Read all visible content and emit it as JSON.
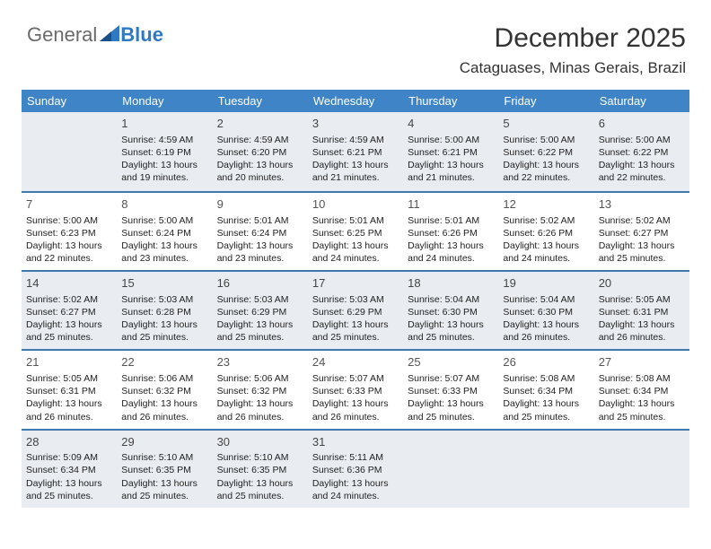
{
  "brand": {
    "part1": "General",
    "part2": "Blue"
  },
  "title": "December 2025",
  "location": "Cataguases, Minas Gerais, Brazil",
  "colors": {
    "header_bg": "#3e84c6",
    "divider": "#3e78b0",
    "shade_bg": "#e9edf1",
    "logo_gray": "#6a6a6a",
    "logo_blue": "#2f78c3"
  },
  "weekdays": [
    "Sunday",
    "Monday",
    "Tuesday",
    "Wednesday",
    "Thursday",
    "Friday",
    "Saturday"
  ],
  "weeks": [
    [
      {
        "n": "",
        "sr": "",
        "ss": "",
        "dl": ""
      },
      {
        "n": "1",
        "sr": "Sunrise: 4:59 AM",
        "ss": "Sunset: 6:19 PM",
        "dl": "Daylight: 13 hours and 19 minutes."
      },
      {
        "n": "2",
        "sr": "Sunrise: 4:59 AM",
        "ss": "Sunset: 6:20 PM",
        "dl": "Daylight: 13 hours and 20 minutes."
      },
      {
        "n": "3",
        "sr": "Sunrise: 4:59 AM",
        "ss": "Sunset: 6:21 PM",
        "dl": "Daylight: 13 hours and 21 minutes."
      },
      {
        "n": "4",
        "sr": "Sunrise: 5:00 AM",
        "ss": "Sunset: 6:21 PM",
        "dl": "Daylight: 13 hours and 21 minutes."
      },
      {
        "n": "5",
        "sr": "Sunrise: 5:00 AM",
        "ss": "Sunset: 6:22 PM",
        "dl": "Daylight: 13 hours and 22 minutes."
      },
      {
        "n": "6",
        "sr": "Sunrise: 5:00 AM",
        "ss": "Sunset: 6:22 PM",
        "dl": "Daylight: 13 hours and 22 minutes."
      }
    ],
    [
      {
        "n": "7",
        "sr": "Sunrise: 5:00 AM",
        "ss": "Sunset: 6:23 PM",
        "dl": "Daylight: 13 hours and 22 minutes."
      },
      {
        "n": "8",
        "sr": "Sunrise: 5:00 AM",
        "ss": "Sunset: 6:24 PM",
        "dl": "Daylight: 13 hours and 23 minutes."
      },
      {
        "n": "9",
        "sr": "Sunrise: 5:01 AM",
        "ss": "Sunset: 6:24 PM",
        "dl": "Daylight: 13 hours and 23 minutes."
      },
      {
        "n": "10",
        "sr": "Sunrise: 5:01 AM",
        "ss": "Sunset: 6:25 PM",
        "dl": "Daylight: 13 hours and 24 minutes."
      },
      {
        "n": "11",
        "sr": "Sunrise: 5:01 AM",
        "ss": "Sunset: 6:26 PM",
        "dl": "Daylight: 13 hours and 24 minutes."
      },
      {
        "n": "12",
        "sr": "Sunrise: 5:02 AM",
        "ss": "Sunset: 6:26 PM",
        "dl": "Daylight: 13 hours and 24 minutes."
      },
      {
        "n": "13",
        "sr": "Sunrise: 5:02 AM",
        "ss": "Sunset: 6:27 PM",
        "dl": "Daylight: 13 hours and 25 minutes."
      }
    ],
    [
      {
        "n": "14",
        "sr": "Sunrise: 5:02 AM",
        "ss": "Sunset: 6:27 PM",
        "dl": "Daylight: 13 hours and 25 minutes."
      },
      {
        "n": "15",
        "sr": "Sunrise: 5:03 AM",
        "ss": "Sunset: 6:28 PM",
        "dl": "Daylight: 13 hours and 25 minutes."
      },
      {
        "n": "16",
        "sr": "Sunrise: 5:03 AM",
        "ss": "Sunset: 6:29 PM",
        "dl": "Daylight: 13 hours and 25 minutes."
      },
      {
        "n": "17",
        "sr": "Sunrise: 5:03 AM",
        "ss": "Sunset: 6:29 PM",
        "dl": "Daylight: 13 hours and 25 minutes."
      },
      {
        "n": "18",
        "sr": "Sunrise: 5:04 AM",
        "ss": "Sunset: 6:30 PM",
        "dl": "Daylight: 13 hours and 25 minutes."
      },
      {
        "n": "19",
        "sr": "Sunrise: 5:04 AM",
        "ss": "Sunset: 6:30 PM",
        "dl": "Daylight: 13 hours and 26 minutes."
      },
      {
        "n": "20",
        "sr": "Sunrise: 5:05 AM",
        "ss": "Sunset: 6:31 PM",
        "dl": "Daylight: 13 hours and 26 minutes."
      }
    ],
    [
      {
        "n": "21",
        "sr": "Sunrise: 5:05 AM",
        "ss": "Sunset: 6:31 PM",
        "dl": "Daylight: 13 hours and 26 minutes."
      },
      {
        "n": "22",
        "sr": "Sunrise: 5:06 AM",
        "ss": "Sunset: 6:32 PM",
        "dl": "Daylight: 13 hours and 26 minutes."
      },
      {
        "n": "23",
        "sr": "Sunrise: 5:06 AM",
        "ss": "Sunset: 6:32 PM",
        "dl": "Daylight: 13 hours and 26 minutes."
      },
      {
        "n": "24",
        "sr": "Sunrise: 5:07 AM",
        "ss": "Sunset: 6:33 PM",
        "dl": "Daylight: 13 hours and 26 minutes."
      },
      {
        "n": "25",
        "sr": "Sunrise: 5:07 AM",
        "ss": "Sunset: 6:33 PM",
        "dl": "Daylight: 13 hours and 25 minutes."
      },
      {
        "n": "26",
        "sr": "Sunrise: 5:08 AM",
        "ss": "Sunset: 6:34 PM",
        "dl": "Daylight: 13 hours and 25 minutes."
      },
      {
        "n": "27",
        "sr": "Sunrise: 5:08 AM",
        "ss": "Sunset: 6:34 PM",
        "dl": "Daylight: 13 hours and 25 minutes."
      }
    ],
    [
      {
        "n": "28",
        "sr": "Sunrise: 5:09 AM",
        "ss": "Sunset: 6:34 PM",
        "dl": "Daylight: 13 hours and 25 minutes."
      },
      {
        "n": "29",
        "sr": "Sunrise: 5:10 AM",
        "ss": "Sunset: 6:35 PM",
        "dl": "Daylight: 13 hours and 25 minutes."
      },
      {
        "n": "30",
        "sr": "Sunrise: 5:10 AM",
        "ss": "Sunset: 6:35 PM",
        "dl": "Daylight: 13 hours and 25 minutes."
      },
      {
        "n": "31",
        "sr": "Sunrise: 5:11 AM",
        "ss": "Sunset: 6:36 PM",
        "dl": "Daylight: 13 hours and 24 minutes."
      },
      {
        "n": "",
        "sr": "",
        "ss": "",
        "dl": ""
      },
      {
        "n": "",
        "sr": "",
        "ss": "",
        "dl": ""
      },
      {
        "n": "",
        "sr": "",
        "ss": "",
        "dl": ""
      }
    ]
  ]
}
